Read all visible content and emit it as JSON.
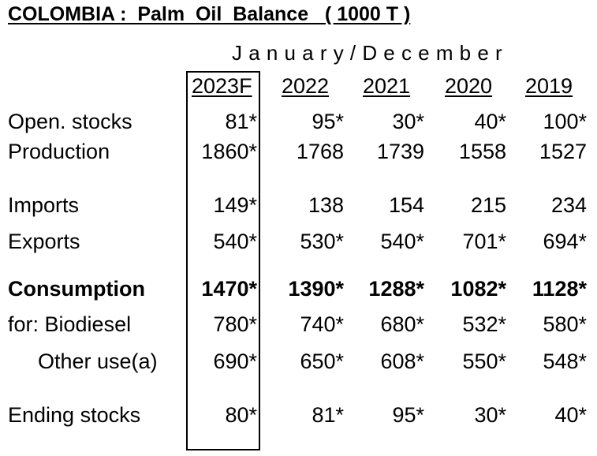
{
  "title": "COLOMBIA :  Palm  Oil  Balance   ( 1000 T )",
  "period": "January/December",
  "years": [
    "2023F",
    "2022",
    "2021",
    "2020",
    "2019"
  ],
  "rows": [
    {
      "label": "Open. stocks",
      "values": [
        "81*",
        "95*",
        "30*",
        "40*",
        "100*"
      ]
    },
    {
      "label": "Production",
      "values": [
        "1860*",
        "1768",
        "1739",
        "1558",
        "1527"
      ]
    },
    {
      "label": "Imports",
      "values": [
        "149*",
        "138",
        "154",
        "215",
        "234"
      ]
    },
    {
      "label": "Exports",
      "values": [
        "540*",
        "530*",
        "540*",
        "701*",
        "694*"
      ]
    },
    {
      "label": "Consumption",
      "values": [
        "1470*",
        "1390*",
        "1288*",
        "1082*",
        "1128*"
      ]
    },
    {
      "label": "for: Biodiesel",
      "values": [
        "780*",
        "740*",
        "680*",
        "532*",
        "580*"
      ]
    },
    {
      "label": "Other use(a)",
      "values": [
        "690*",
        "650*",
        "608*",
        "550*",
        "548*"
      ]
    },
    {
      "label": "Ending stocks",
      "values": [
        "80*",
        "81*",
        "95*",
        "30*",
        "40*"
      ]
    }
  ]
}
